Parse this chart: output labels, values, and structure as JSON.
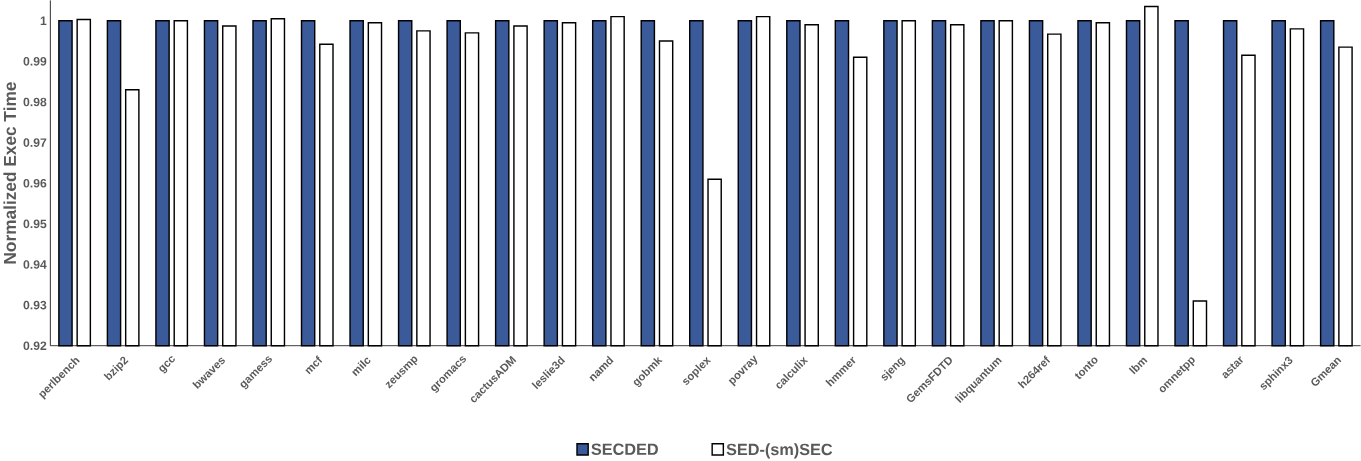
{
  "chart_data": {
    "type": "bar",
    "ylabel": "Normalized Exec Time",
    "categories": [
      "perlbench",
      "bzip2",
      "gcc",
      "bwaves",
      "gamess",
      "mcf",
      "milc",
      "zeusmp",
      "gromacs",
      "cactusADM",
      "leslie3d",
      "namd",
      "gobmk",
      "soplex",
      "povray",
      "calculix",
      "hmmer",
      "sjeng",
      "GemsFDTD",
      "libquantum",
      "h264ref",
      "tonto",
      "lbm",
      "omnetpp",
      "astar",
      "sphinx3",
      "Gmean"
    ],
    "series": [
      {
        "name": "SECDED",
        "color": "#3a5a9a",
        "values": [
          1,
          1,
          1,
          1,
          1,
          1,
          1,
          1,
          1,
          1,
          1,
          1,
          1,
          1,
          1,
          1,
          1,
          1,
          1,
          1,
          1,
          1,
          1,
          1,
          1,
          1,
          1
        ]
      },
      {
        "name": "SED-(sm)SEC",
        "color": "#ffffff",
        "values": [
          1.0003,
          0.983,
          1.0,
          0.9987,
          1.0005,
          0.9942,
          0.9995,
          0.9975,
          0.997,
          0.9987,
          0.9995,
          1.001,
          0.995,
          0.961,
          1.001,
          0.999,
          0.991,
          1.0,
          0.999,
          1.0,
          0.9967,
          0.9995,
          1.0035,
          0.931,
          0.9915,
          0.998,
          0.9935
        ]
      }
    ],
    "ylim": [
      0.92,
      1.005
    ],
    "yticks": [
      0.92,
      0.93,
      0.94,
      0.95,
      0.96,
      0.97,
      0.98,
      0.99,
      1
    ],
    "grid": false,
    "legend": "bottom"
  }
}
